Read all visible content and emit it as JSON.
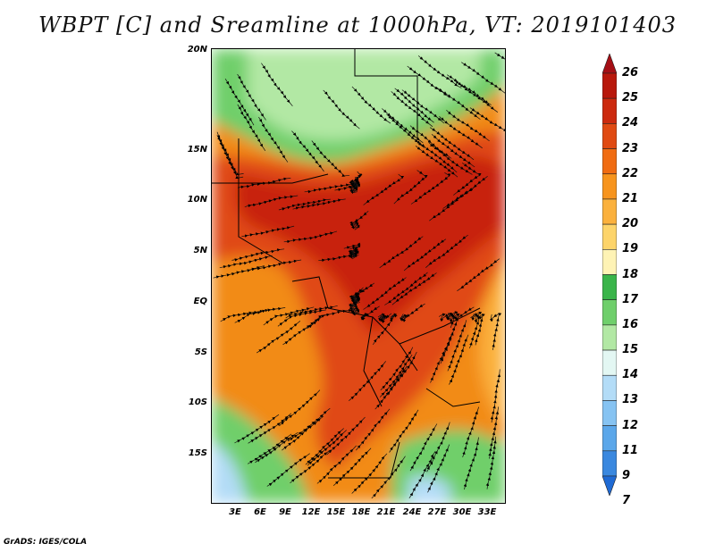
{
  "title": "WBPT [C] and Sreamline at 1000hPa, VT: 2019101403",
  "footer": "GrADS: IGES/COLA",
  "lat_labels": [
    "20N",
    "15N",
    "10N",
    "5N",
    "EQ",
    "5S",
    "10S",
    "15S"
  ],
  "lon_labels": [
    "3E",
    "6E",
    "9E",
    "12E",
    "15E",
    "18E",
    "21E",
    "24E",
    "27E",
    "30E",
    "33E"
  ],
  "colorbar": {
    "labels": [
      "26",
      "25",
      "24",
      "23",
      "22",
      "21",
      "20",
      "19",
      "18",
      "17",
      "16",
      "15",
      "14",
      "13",
      "12",
      "11",
      "9",
      "7"
    ],
    "colors": [
      "#a50f15",
      "#b8180c",
      "#cc2a0e",
      "#e04a12",
      "#f06c12",
      "#f7941d",
      "#fbb13d",
      "#fdd46a",
      "#fef3b5",
      "#3ab54a",
      "#6fcf6b",
      "#b2e8a4",
      "#e3f7f3",
      "#b3dcf7",
      "#86c3f2",
      "#5ba7ea",
      "#3a88df",
      "#1f6ad4"
    ]
  },
  "map": {
    "land_hot": "#c8200f",
    "land_warm": "#e04a12",
    "land_orange": "#f28b16",
    "land_green": "#6fcf6b",
    "land_lightgreen": "#b2e8a4",
    "land_blue": "#b3dcf7"
  }
}
